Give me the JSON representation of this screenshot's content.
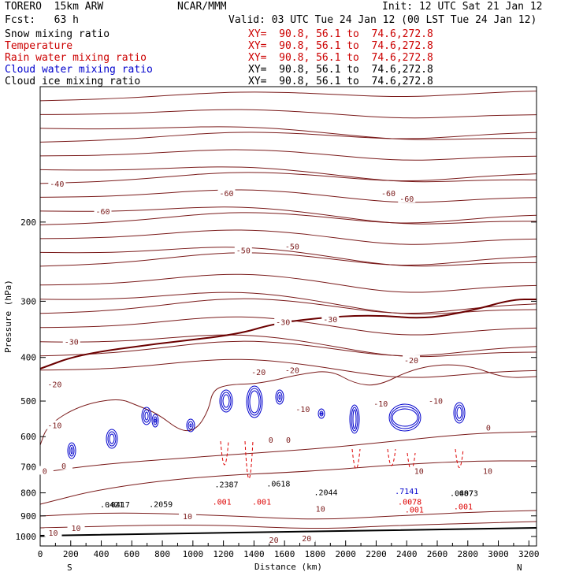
{
  "header": {
    "model": "TORERO  15km ARW",
    "center": "NCAR/MMM",
    "init": "Init: 12 UTC Sat 21 Jan 12",
    "fcst": "Fcst:   63 h",
    "valid": "Valid: 03 UTC Tue 24 Jan 12 (00 LST Tue 24 Jan 12)"
  },
  "fields": [
    {
      "name": "Snow mixing ratio",
      "xy": "XY=  90.8, 56.1 to  74.6,272.8",
      "color": "#000000",
      "xy_color": "#cc0000"
    },
    {
      "name": "Temperature",
      "xy": "XY=  90.8, 56.1 to  74.6,272.8",
      "color": "#cc0000",
      "xy_color": "#cc0000"
    },
    {
      "name": "Rain water mixing ratio",
      "xy": "XY=  90.8, 56.1 to  74.6,272.8",
      "color": "#cc0000",
      "xy_color": "#cc0000"
    },
    {
      "name": "Cloud water mixing ratio",
      "xy": "XY=  90.8, 56.1 to  74.6,272.8",
      "color": "#0000cc",
      "xy_color": "#000000"
    },
    {
      "name": "Cloud ice mixing ratio",
      "xy": "XY=  90.8, 56.1 to  74.6,272.8",
      "color": "#000000",
      "xy_color": "#000000"
    }
  ],
  "colors": {
    "temperature": "#7a1a1a",
    "freezing": "#6b0000",
    "rain": "#dd0000",
    "cloud_water": "#0000cc",
    "cloud_ice": "#000000",
    "snow": "#8b0000"
  },
  "chart_data": {
    "type": "line",
    "title": "",
    "xlabel": "Distance (km)",
    "ylabel": "Pressure (hPa)",
    "xlim": [
      0,
      3250
    ],
    "ylim": [
      1050,
      100
    ],
    "y_scale": "log",
    "x_ticks": [
      0,
      200,
      400,
      600,
      800,
      1000,
      1200,
      1400,
      1600,
      1800,
      2000,
      2200,
      2400,
      2600,
      2800,
      3000,
      3200
    ],
    "y_ticks": [
      200,
      300,
      400,
      500,
      600,
      700,
      800,
      900,
      1000
    ],
    "end_labels": {
      "left": "S",
      "right": "N"
    },
    "temperature_labels": [
      {
        "text": "-60",
        "x": 410,
        "p": 190
      },
      {
        "text": "-60",
        "x": 1220,
        "p": 173
      },
      {
        "text": "-60",
        "x": 2280,
        "p": 173
      },
      {
        "text": "-60",
        "x": 2400,
        "p": 178
      },
      {
        "text": "-50",
        "x": 1330,
        "p": 232
      },
      {
        "text": "-50",
        "x": 1650,
        "p": 227
      },
      {
        "text": "-40",
        "x": 110,
        "p": 165
      },
      {
        "text": "-30",
        "x": 205,
        "p": 370
      },
      {
        "text": "-30",
        "x": 1590,
        "p": 335
      },
      {
        "text": "-30",
        "x": 1900,
        "p": 330
      },
      {
        "text": "-20",
        "x": 95,
        "p": 460
      },
      {
        "text": "-20",
        "x": 1430,
        "p": 432
      },
      {
        "text": "-20",
        "x": 1650,
        "p": 428
      },
      {
        "text": "-20",
        "x": 2430,
        "p": 407
      },
      {
        "text": "-10",
        "x": 95,
        "p": 568
      },
      {
        "text": "-10",
        "x": 1720,
        "p": 523
      },
      {
        "text": "-10",
        "x": 2230,
        "p": 508
      },
      {
        "text": "-10",
        "x": 2590,
        "p": 501
      },
      {
        "text": "0",
        "x": 30,
        "p": 717
      },
      {
        "text": "0",
        "x": 155,
        "p": 698
      },
      {
        "text": "0",
        "x": 1510,
        "p": 612
      },
      {
        "text": "0",
        "x": 1625,
        "p": 612
      },
      {
        "text": "0",
        "x": 2935,
        "p": 575
      },
      {
        "text": "10",
        "x": 2480,
        "p": 717
      },
      {
        "text": "10",
        "x": 2930,
        "p": 717
      },
      {
        "text": "10",
        "x": 1835,
        "p": 870
      },
      {
        "text": "10",
        "x": 965,
        "p": 905
      },
      {
        "text": "10",
        "x": 235,
        "p": 960
      },
      {
        "text": "10",
        "x": 85,
        "p": 985
      },
      {
        "text": "20",
        "x": 1530,
        "p": 1020
      },
      {
        "text": "20",
        "x": 1745,
        "p": 1012
      }
    ],
    "cloud_labels": [
      {
        "text": ".001",
        "x": 1190,
        "p": 850,
        "color": "#dd0000"
      },
      {
        "text": ".001",
        "x": 1450,
        "p": 850,
        "color": "#dd0000"
      },
      {
        "text": ".001",
        "x": 2450,
        "p": 885,
        "color": "#dd0000"
      },
      {
        "text": ".001",
        "x": 2770,
        "p": 870,
        "color": "#dd0000"
      },
      {
        "text": ".0078",
        "x": 2420,
        "p": 850,
        "color": "#dd0000"
      },
      {
        "text": ".7141",
        "x": 2400,
        "p": 805,
        "color": "#0000cc"
      },
      {
        "text": ".2387",
        "x": 1220,
        "p": 778,
        "color": "#000000"
      },
      {
        "text": ".2044",
        "x": 1870,
        "p": 810,
        "color": "#000000"
      },
      {
        "text": ".0618",
        "x": 1560,
        "p": 775,
        "color": "#000000"
      },
      {
        "text": ".0421",
        "x": 470,
        "p": 862,
        "color": "#000000"
      },
      {
        "text": ".0417",
        "x": 510,
        "p": 862,
        "color": "#000000"
      },
      {
        "text": ".2059",
        "x": 790,
        "p": 860,
        "color": "#000000"
      },
      {
        "text": ".0407",
        "x": 2760,
        "p": 812,
        "color": "#000000"
      },
      {
        "text": ".0873",
        "x": 2790,
        "p": 812,
        "color": "#000000"
      }
    ]
  }
}
